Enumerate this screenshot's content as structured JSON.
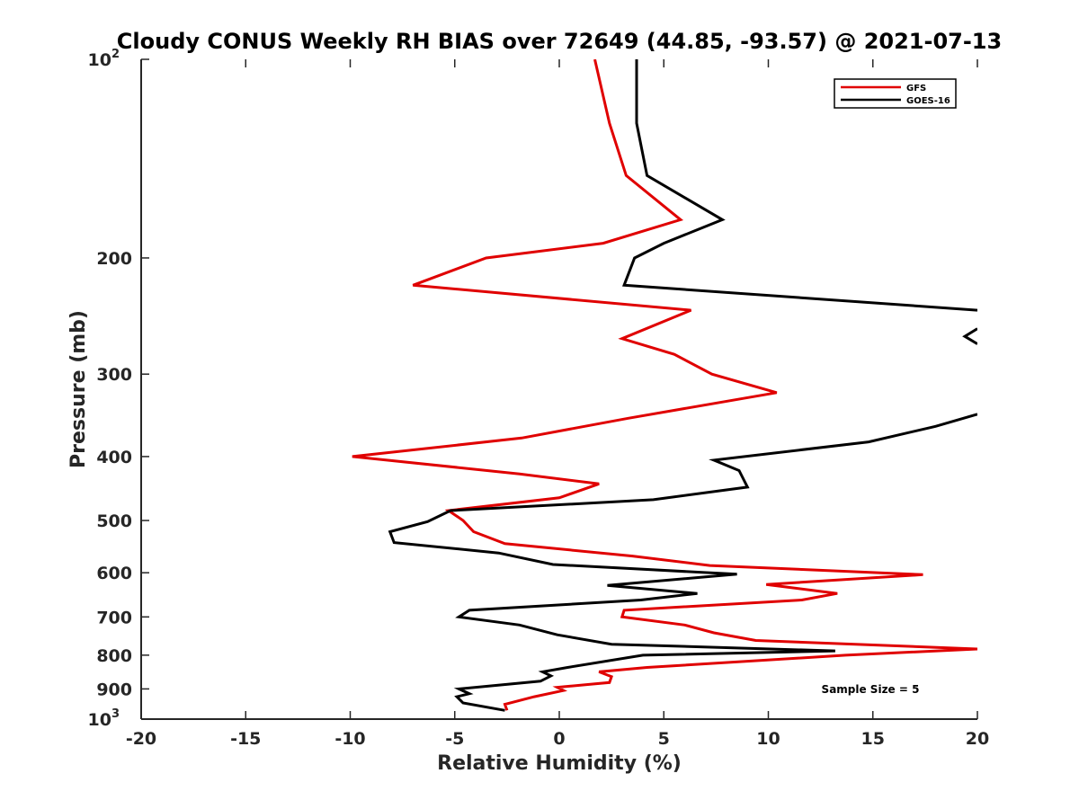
{
  "chart_data": {
    "type": "line",
    "title": "Cloudy CONUS Weekly RH BIAS over 72649 (44.85, -93.57) @ 2021-07-13",
    "xlabel": "Relative Humidity (%)",
    "ylabel": "Pressure (mb)",
    "xlim": [
      -20,
      20
    ],
    "ylim": [
      100,
      1000
    ],
    "y_scale": "log",
    "y_reversed": true,
    "grid": false,
    "legend_position": "top-right",
    "x_ticks": [
      "-20",
      "-15",
      "-10",
      "-5",
      "0",
      "5",
      "10",
      "15",
      "20"
    ],
    "y_ticks": [
      {
        "value": 100,
        "base": "10",
        "exp": "2"
      },
      {
        "value": 200,
        "label": "200"
      },
      {
        "value": 300,
        "label": "300"
      },
      {
        "value": 400,
        "label": "400"
      },
      {
        "value": 500,
        "label": "500"
      },
      {
        "value": 600,
        "label": "600"
      },
      {
        "value": 700,
        "label": "700"
      },
      {
        "value": 800,
        "label": "800"
      },
      {
        "value": 900,
        "label": "900"
      },
      {
        "value": 1000,
        "base": "10",
        "exp": "3"
      }
    ],
    "annotation": "Sample Size = 5",
    "series": [
      {
        "name": "GFS",
        "color": "#e00000",
        "points": [
          [
            1.7,
            100
          ],
          [
            2.4,
            125
          ],
          [
            3.2,
            150
          ],
          [
            5.8,
            175
          ],
          [
            2.1,
            190
          ],
          [
            -3.5,
            200
          ],
          [
            -7.0,
            220
          ],
          [
            6.3,
            240
          ],
          [
            3.0,
            265
          ],
          [
            5.5,
            280
          ],
          [
            7.3,
            300
          ],
          [
            10.4,
            320
          ],
          [
            3.3,
            350
          ],
          [
            -1.8,
            375
          ],
          [
            -9.9,
            400
          ],
          [
            -1.9,
            425
          ],
          [
            1.9,
            440
          ],
          [
            0.0,
            462
          ],
          [
            -5.3,
            483
          ],
          [
            -4.6,
            500
          ],
          [
            -4.1,
            520
          ],
          [
            -2.6,
            542
          ],
          [
            3.5,
            566
          ],
          [
            7.2,
            585
          ],
          [
            17.4,
            604
          ],
          [
            9.9,
            625
          ],
          [
            13.3,
            645
          ],
          [
            11.6,
            660
          ],
          [
            3.1,
            684
          ],
          [
            3.0,
            700
          ],
          [
            6.0,
            720
          ],
          [
            7.4,
            740
          ],
          [
            9.4,
            760
          ],
          [
            20.0,
            783
          ],
          [
            13.7,
            800
          ],
          [
            4.2,
            835
          ],
          [
            1.9,
            848
          ],
          [
            2.5,
            862
          ],
          [
            2.4,
            880
          ],
          [
            -0.1,
            895
          ],
          [
            0.2,
            905
          ],
          [
            -1.2,
            925
          ],
          [
            -2.6,
            950
          ],
          [
            -2.5,
            970
          ]
        ]
      },
      {
        "name": "GOES-16",
        "color": "#000000",
        "points": [
          [
            3.7,
            100
          ],
          [
            3.7,
            125
          ],
          [
            4.2,
            150
          ],
          [
            7.8,
            175
          ],
          [
            5.0,
            190
          ],
          [
            3.6,
            200
          ],
          [
            3.1,
            220
          ],
          [
            20.0,
            240
          ],
          [
            null,
            null
          ],
          [
            20.0,
            256
          ],
          [
            19.4,
            263
          ],
          [
            20.0,
            270
          ],
          [
            null,
            null
          ],
          [
            20.0,
            345
          ],
          [
            18.0,
            360
          ],
          [
            14.8,
            380
          ],
          [
            7.4,
            405
          ],
          [
            8.6,
            420
          ],
          [
            9.0,
            445
          ],
          [
            4.5,
            465
          ],
          [
            -5.2,
            483
          ],
          [
            -6.3,
            502
          ],
          [
            -8.1,
            520
          ],
          [
            -7.9,
            540
          ],
          [
            -2.9,
            560
          ],
          [
            -0.3,
            583
          ],
          [
            8.5,
            603
          ],
          [
            2.3,
            627
          ],
          [
            6.6,
            645
          ],
          [
            3.9,
            660
          ],
          [
            -4.3,
            684
          ],
          [
            -4.8,
            700
          ],
          [
            -1.9,
            720
          ],
          [
            -0.1,
            745
          ],
          [
            2.5,
            770
          ],
          [
            13.2,
            788
          ],
          [
            4.0,
            800
          ],
          [
            0.4,
            835
          ],
          [
            -0.8,
            848
          ],
          [
            -0.4,
            860
          ],
          [
            -0.9,
            876
          ],
          [
            -4.8,
            900
          ],
          [
            -4.3,
            915
          ],
          [
            -4.9,
            925
          ],
          [
            -4.6,
            945
          ],
          [
            -2.6,
            970
          ]
        ]
      }
    ]
  }
}
